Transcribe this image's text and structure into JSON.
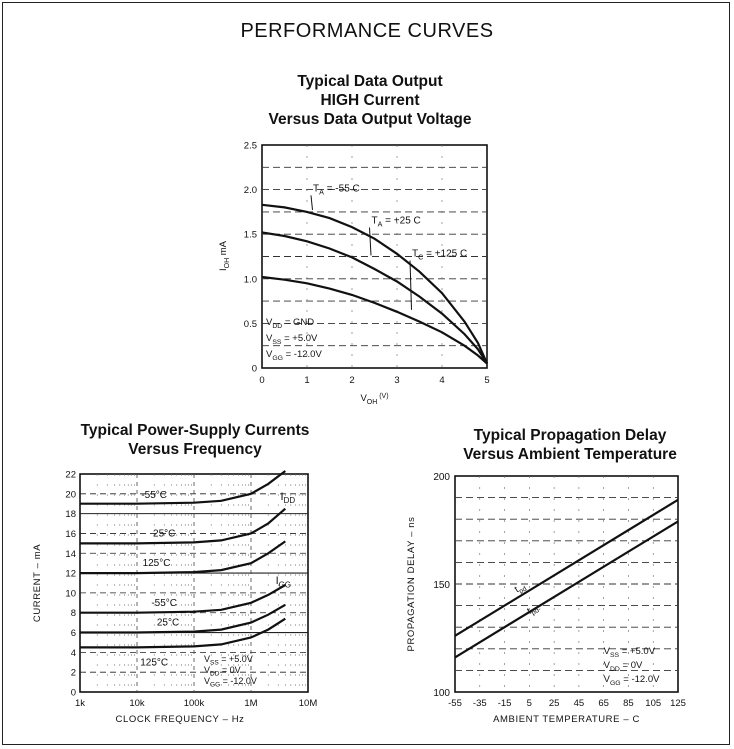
{
  "page_title": "PERFORMANCE CURVES",
  "chart_data": [
    {
      "type": "line",
      "title": [
        "Typical Data Output",
        "HIGH Current",
        "Versus Data Output Voltage"
      ],
      "xlabel_main": "V",
      "xlabel_sub": "OH",
      "xlabel_unit": "(V)",
      "ylabel_main": "I",
      "ylabel_sub": "OH",
      "ylabel_unit": "mA",
      "xlim": [
        0,
        5
      ],
      "ylim": [
        0,
        2.5
      ],
      "x_ticks": [
        "0",
        "1",
        "2",
        "3",
        "4",
        "5"
      ],
      "y_ticks": [
        "0",
        "0.5",
        "1.0",
        "1.5",
        "2.0",
        "2.5"
      ],
      "series": [
        {
          "name": "T_A = -55°C",
          "x": [
            0,
            0.5,
            1,
            1.5,
            2,
            2.5,
            3,
            3.5,
            4,
            4.5,
            4.8,
            5
          ],
          "y": [
            1.83,
            1.8,
            1.75,
            1.68,
            1.58,
            1.45,
            1.28,
            1.08,
            0.84,
            0.52,
            0.28,
            0.05
          ]
        },
        {
          "name": "T_A = +25°C",
          "x": [
            0,
            0.5,
            1,
            1.5,
            2,
            2.5,
            3,
            3.5,
            4,
            4.5,
            4.8,
            5
          ],
          "y": [
            1.52,
            1.48,
            1.42,
            1.34,
            1.24,
            1.11,
            0.97,
            0.8,
            0.61,
            0.38,
            0.21,
            0.05
          ]
        },
        {
          "name": "T_C = +125°C",
          "x": [
            0,
            0.5,
            1,
            1.5,
            2,
            2.5,
            3,
            3.5,
            4,
            4.5,
            4.8,
            5
          ],
          "y": [
            1.02,
            0.99,
            0.95,
            0.89,
            0.82,
            0.73,
            0.63,
            0.52,
            0.4,
            0.25,
            0.14,
            0.05
          ]
        }
      ],
      "curve_labels": [
        {
          "main": "T",
          "sub": "A",
          "rest": " = -55 C",
          "x": 1.0,
          "y": 1.98
        },
        {
          "main": "T",
          "sub": "A",
          "rest": " = +25 C",
          "x": 2.3,
          "y": 1.62
        },
        {
          "main": "T",
          "sub": "C",
          "rest": " = +125 C",
          "x": 3.2,
          "y": 1.25
        }
      ],
      "conditions": [
        {
          "main": "V",
          "sub": "DD",
          "rest": " = GND"
        },
        {
          "main": "V",
          "sub": "SS",
          "rest": " = +5.0V"
        },
        {
          "main": "V",
          "sub": "GG",
          "rest": " = -12.0V"
        }
      ]
    },
    {
      "type": "line",
      "xscale": "log",
      "title": [
        "Typical Power-Supply Currents",
        "Versus Frequency"
      ],
      "xlabel": "CLOCK FREQUENCY – Hz",
      "ylabel": "CURRENT – mA",
      "xlim": [
        1000,
        10000000
      ],
      "ylim": [
        0,
        22
      ],
      "x_ticks": [
        {
          "v": 1000,
          "label": "1k"
        },
        {
          "v": 10000,
          "label": "10k"
        },
        {
          "v": 100000,
          "label": "100k"
        },
        {
          "v": 1000000,
          "label": "1M"
        },
        {
          "v": 10000000,
          "label": "10M"
        }
      ],
      "y_ticks": [
        "0",
        "2",
        "4",
        "6",
        "8",
        "10",
        "12",
        "14",
        "16",
        "18",
        "20",
        "22"
      ],
      "series": [
        {
          "group": "IDD",
          "name": "-55°C",
          "x": [
            1000,
            10000,
            100000,
            300000,
            1000000,
            2000000,
            4000000
          ],
          "y": [
            19.0,
            19.0,
            19.1,
            19.3,
            20.0,
            21.0,
            22.3
          ]
        },
        {
          "group": "IDD",
          "name": "25°C",
          "x": [
            1000,
            10000,
            100000,
            300000,
            1000000,
            2000000,
            4000000
          ],
          "y": [
            15.0,
            15.0,
            15.1,
            15.3,
            16.0,
            17.0,
            18.5
          ]
        },
        {
          "group": "IDD",
          "name": "125°C",
          "x": [
            1000,
            10000,
            100000,
            300000,
            1000000,
            2000000,
            4000000
          ],
          "y": [
            12.0,
            12.0,
            12.1,
            12.3,
            13.0,
            14.0,
            15.2
          ]
        },
        {
          "group": "IGG",
          "name": "-55°C",
          "x": [
            1000,
            10000,
            100000,
            300000,
            1000000,
            2000000,
            4000000
          ],
          "y": [
            8.0,
            8.0,
            8.1,
            8.3,
            9.0,
            9.8,
            10.8
          ]
        },
        {
          "group": "IGG",
          "name": "25°C",
          "x": [
            1000,
            10000,
            100000,
            300000,
            1000000,
            2000000,
            4000000
          ],
          "y": [
            6.0,
            6.0,
            6.1,
            6.3,
            7.0,
            7.8,
            8.8
          ]
        },
        {
          "group": "IGG",
          "name": "125°C",
          "x": [
            1000,
            10000,
            100000,
            300000,
            1000000,
            2000000,
            4000000
          ],
          "y": [
            4.5,
            4.5,
            4.6,
            4.8,
            5.5,
            6.3,
            7.4
          ]
        }
      ],
      "curve_labels": [
        {
          "text": "-55°C",
          "x": 20000,
          "y": 19.9
        },
        {
          "text": "25°C",
          "x": 30000,
          "y": 16.0
        },
        {
          "text": "125°C",
          "x": 22000,
          "y": 13.0
        },
        {
          "text": "-55°C",
          "x": 30000,
          "y": 9.0
        },
        {
          "text": "25°C",
          "x": 35000,
          "y": 7.0
        },
        {
          "text": "125°C",
          "x": 20000,
          "y": 3.0
        }
      ],
      "group_labels": [
        {
          "main": "I",
          "sub": "DD",
          "x": 3300000,
          "y": 19.4
        },
        {
          "main": "I",
          "sub": "GG",
          "x": 2700000,
          "y": 10.9
        }
      ],
      "conditions": [
        {
          "main": "V",
          "sub": "SS",
          "rest": " = +5.0V"
        },
        {
          "main": "V",
          "sub": "DD",
          "rest": " = 0V"
        },
        {
          "main": "V",
          "sub": "GG",
          "rest": " = -12.0V"
        }
      ]
    },
    {
      "type": "line",
      "title": [
        "Typical Propagation Delay",
        "Versus Ambient Temperature"
      ],
      "xlabel": "AMBIENT TEMPERATURE –  C",
      "ylabel": "PROPAGATION DELAY –  ns",
      "xlim": [
        -55,
        125
      ],
      "ylim": [
        100,
        200
      ],
      "x_ticks": [
        "-55",
        "-35",
        "-15",
        "5",
        "25",
        "45",
        "65",
        "85",
        "105",
        "125"
      ],
      "y_ticks": [
        {
          "v": 100,
          "label": "100"
        },
        {
          "v": 150,
          "label": "150"
        },
        {
          "v": 200,
          "label": "200"
        }
      ],
      "series": [
        {
          "name": "t_pd",
          "x": [
            -55,
            125
          ],
          "y": [
            126,
            189
          ]
        },
        {
          "name": "t_pd-",
          "x": [
            -55,
            125
          ],
          "y": [
            116,
            179
          ]
        }
      ],
      "curve_labels": [
        {
          "main": "t",
          "sub": "pd",
          "x": -5,
          "y": 146
        },
        {
          "main": "t",
          "sub": "pd-",
          "x": 5,
          "y": 136
        }
      ],
      "conditions": [
        {
          "main": "V",
          "sub": "SS",
          "rest": " = +5.0V"
        },
        {
          "main": "V",
          "sub": "DD",
          "rest": " = 0V"
        },
        {
          "main": "V",
          "sub": "GG",
          "rest": " = -12.0V"
        }
      ]
    }
  ]
}
